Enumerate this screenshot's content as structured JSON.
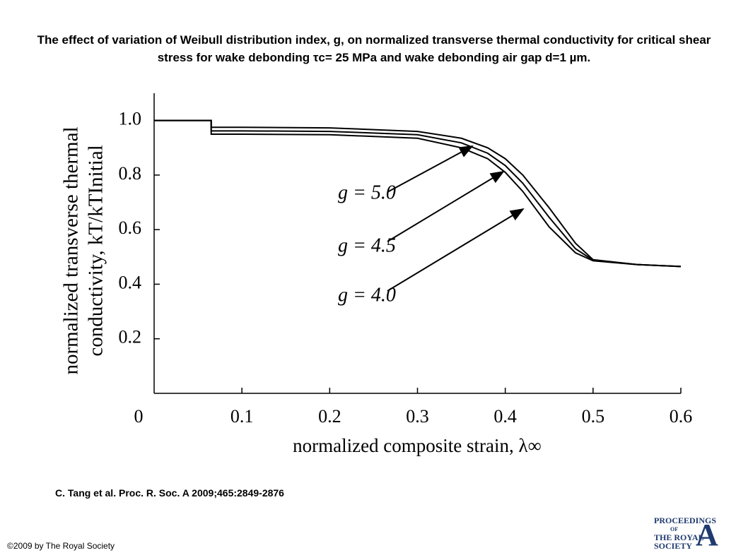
{
  "chart_data": {
    "type": "line",
    "title": "The effect of variation of Weibull distribution index, g, on normalized transverse thermal conductivity for critical shear stress for wake debonding τc= 25 MPa and wake debonding air gap d=1 µm.",
    "x_label": "normalized composite strain, λ∞",
    "y_label": [
      "normalized transverse thermal",
      "conductivity, kT/kTInitial"
    ],
    "x": [
      0,
      0.065,
      0.065,
      0.1,
      0.2,
      0.3,
      0.35,
      0.38,
      0.4,
      0.42,
      0.45,
      0.48,
      0.5,
      0.55,
      0.6
    ],
    "series": [
      {
        "name": "g = 5.0",
        "color": "#000000",
        "values": [
          1.0,
          1.0,
          0.975,
          0.975,
          0.973,
          0.96,
          0.935,
          0.9,
          0.86,
          0.8,
          0.68,
          0.55,
          0.49,
          0.472,
          0.465
        ]
      },
      {
        "name": "g = 4.5",
        "color": "#000000",
        "values": [
          1.0,
          1.0,
          0.962,
          0.962,
          0.96,
          0.948,
          0.918,
          0.88,
          0.835,
          0.77,
          0.645,
          0.53,
          0.488,
          0.472,
          0.465
        ]
      },
      {
        "name": "g = 4.0",
        "color": "#000000",
        "values": [
          1.0,
          1.0,
          0.95,
          0.95,
          0.948,
          0.935,
          0.9,
          0.86,
          0.81,
          0.74,
          0.61,
          0.515,
          0.486,
          0.472,
          0.465
        ]
      }
    ],
    "xlim": [
      0,
      0.6
    ],
    "ylim": [
      0,
      1.1
    ],
    "xticks": [
      0,
      0.1,
      0.2,
      0.3,
      0.4,
      0.5,
      0.6
    ],
    "yticks": [
      0.2,
      0.4,
      0.6,
      {
        "value": 1.0,
        "label": "1.0"
      },
      0.8
    ],
    "grid": false
  },
  "citation": "C. Tang et al. Proc. R. Soc. A 2009;465:2849-2876",
  "copyright": "©2009 by The Royal Society",
  "logo": {
    "lines": [
      "PROCEEDINGS",
      "OF",
      "THE ROYAL",
      "SOCIETY"
    ],
    "letter": "A"
  }
}
